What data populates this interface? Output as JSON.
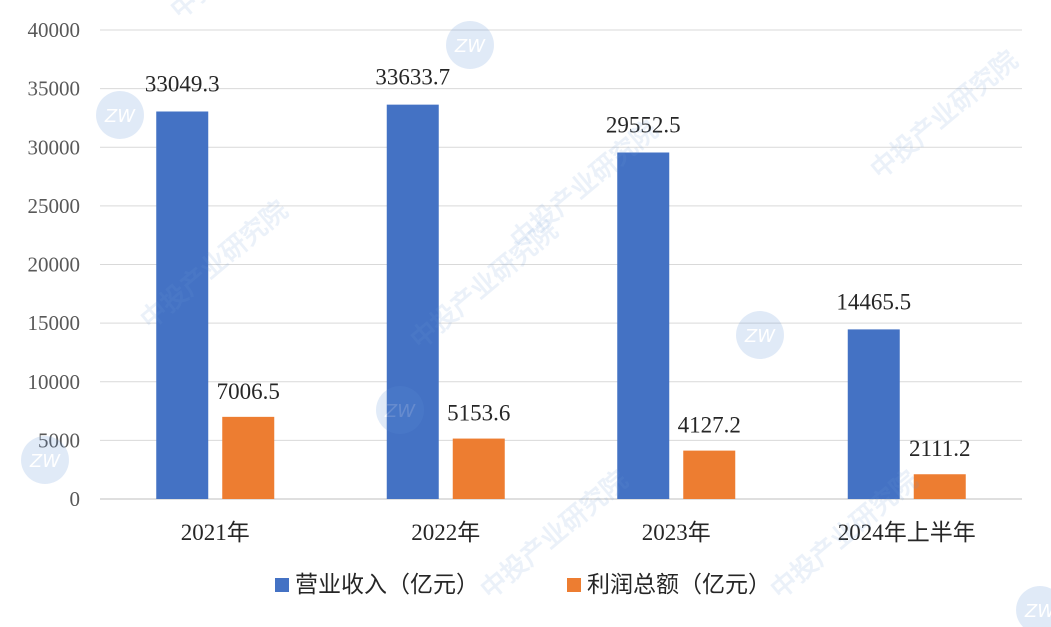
{
  "chart_data": {
    "type": "bar",
    "categories": [
      "2021年",
      "2022年",
      "2023年",
      "2024年上半年"
    ],
    "series": [
      {
        "name": "营业收入（亿元）",
        "color": "#4472C4",
        "values": [
          33049.3,
          33633.7,
          29552.5,
          14465.5
        ],
        "labels": [
          "33049.3",
          "33633.7",
          "29552.5",
          "14465.5"
        ]
      },
      {
        "name": "利润总额（亿元）",
        "color": "#ED7D31",
        "values": [
          7006.5,
          5153.6,
          4127.2,
          2111.2
        ],
        "labels": [
          "7006.5",
          "5153.6",
          "4127.2",
          "2111.2"
        ]
      }
    ],
    "ylim": [
      0,
      40000
    ],
    "yticks": [
      0,
      5000,
      10000,
      15000,
      20000,
      25000,
      30000,
      35000,
      40000
    ],
    "grid": true,
    "legend": "bottom"
  },
  "watermark": {
    "text": "中投产业研究院",
    "logo_text": "ZW"
  }
}
